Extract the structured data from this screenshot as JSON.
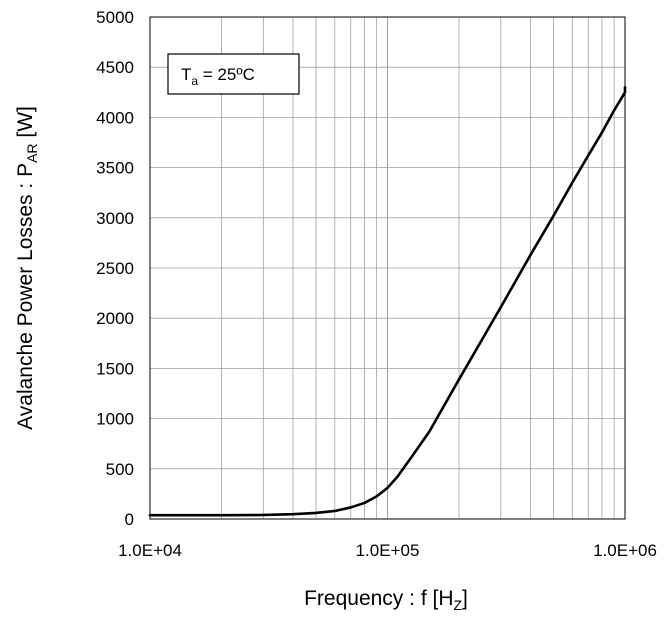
{
  "chart_data": {
    "type": "line",
    "xlabel": {
      "text": "Frequency : f [H",
      "sub": "Z",
      "suffix": "]"
    },
    "ylabel": {
      "text": "Avalanche Power Losses : P",
      "sub": "AR",
      "suffix": " [W]"
    },
    "x_scale": "log",
    "xlim": [
      10000,
      1000000
    ],
    "ylim": [
      0,
      5000
    ],
    "x_ticks": [
      {
        "value": 10000,
        "label": "1.0E+04"
      },
      {
        "value": 100000,
        "label": "1.0E+05"
      },
      {
        "value": 1000000,
        "label": "1.0E+06"
      }
    ],
    "y_ticks": [
      {
        "value": 0,
        "label": "0"
      },
      {
        "value": 500,
        "label": "500"
      },
      {
        "value": 1000,
        "label": "1000"
      },
      {
        "value": 1500,
        "label": "1500"
      },
      {
        "value": 2000,
        "label": "2000"
      },
      {
        "value": 2500,
        "label": "2500"
      },
      {
        "value": 3000,
        "label": "3000"
      },
      {
        "value": 3500,
        "label": "3500"
      },
      {
        "value": 4000,
        "label": "4000"
      },
      {
        "value": 4500,
        "label": "4500"
      },
      {
        "value": 5000,
        "label": "5000"
      }
    ],
    "grid": true,
    "annotation": {
      "text": "T",
      "sub": "a",
      "suffix": " = 25ºC"
    },
    "series": [
      {
        "x": [
          10000,
          20000,
          30000,
          40000,
          50000,
          60000,
          70000,
          80000,
          90000,
          100000,
          110000,
          130000,
          150000,
          200000,
          300000,
          400000,
          500000,
          600000,
          700000,
          800000,
          900000,
          1000000,
          1100000
        ],
        "y": [
          38,
          38,
          40,
          48,
          60,
          80,
          115,
          160,
          225,
          310,
          420,
          660,
          870,
          1390,
          2110,
          2630,
          3020,
          3350,
          3620,
          3850,
          4070,
          4250,
          4300
        ]
      }
    ],
    "colors": {
      "line": "#000000",
      "grid": "#a0a0a0",
      "axis": "#000000"
    }
  }
}
